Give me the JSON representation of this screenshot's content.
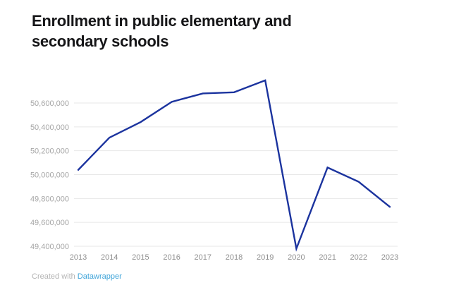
{
  "title": "Enrollment in public elementary and secondary schools",
  "footer": {
    "created_with": "Created with",
    "link_label": "Datawrapper"
  },
  "colors": {
    "title": "#161618",
    "line": "#1b339e",
    "grid": "#e7e7e7",
    "y_tick_label": "#a6a6a6",
    "x_tick_label": "#8f8f8f",
    "footer_text": "#b4b4b4",
    "footer_link": "#41a5d9",
    "background": "#ffffff"
  },
  "chart_data": {
    "type": "line",
    "title": "Enrollment in public elementary and secondary schools",
    "x": [
      2013,
      2014,
      2015,
      2016,
      2017,
      2018,
      2019,
      2020,
      2021,
      2022,
      2023
    ],
    "values": [
      50040000,
      50310000,
      50440000,
      50610000,
      50680000,
      50690000,
      50790000,
      49380000,
      50060000,
      49940000,
      49730000
    ],
    "xlabel": "",
    "ylabel": "",
    "y_ticks": [
      49400000,
      49600000,
      49800000,
      50000000,
      50200000,
      50400000,
      50600000
    ],
    "ylim": [
      49350000,
      50820000
    ],
    "grid": true,
    "legend": "none"
  }
}
